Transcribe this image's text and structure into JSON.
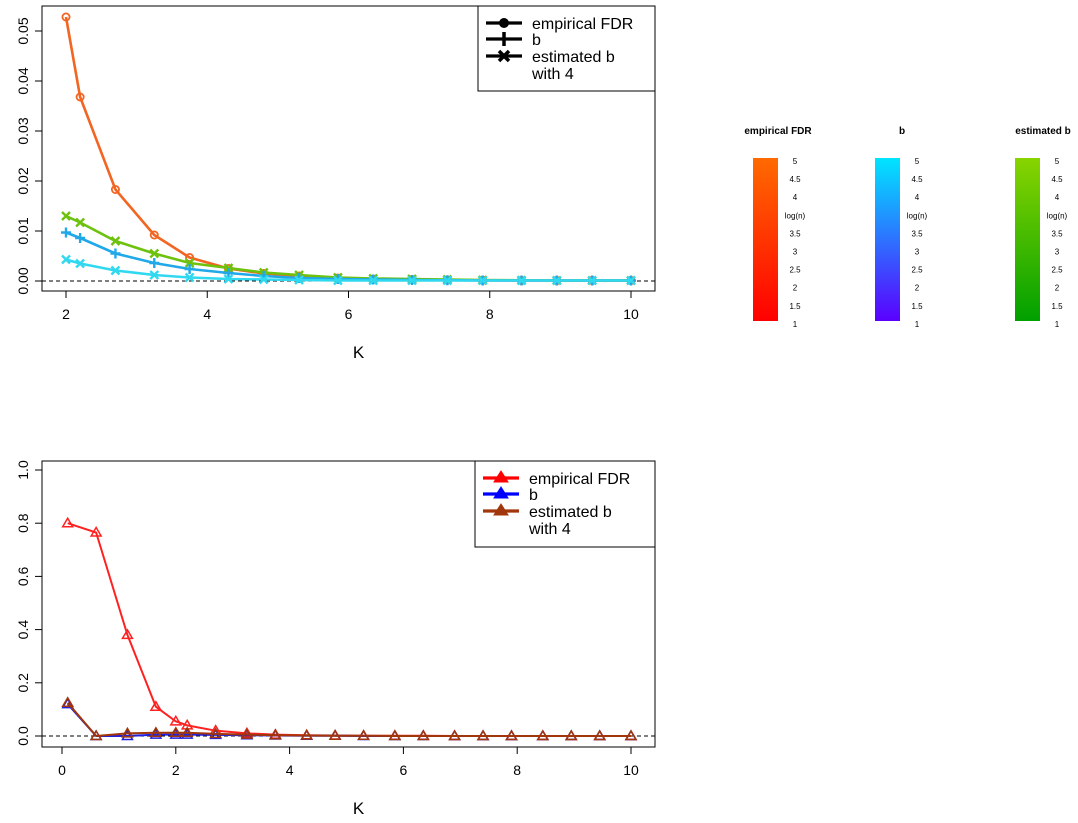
{
  "chart_data": [
    {
      "type": "line",
      "xlabel": "K",
      "ylabel": "",
      "xlim": [
        1.75,
        10.25
      ],
      "ylim": [
        -0.002,
        0.055
      ],
      "xticks": [
        2,
        4,
        6,
        8,
        10
      ],
      "xtick_labels": [
        "2",
        "4",
        "6",
        "8",
        "10"
      ],
      "yticks": [
        0.0,
        0.01,
        0.02,
        0.03,
        0.04,
        0.05
      ],
      "ytick_labels": [
        "0.00",
        "0.01",
        "0.02",
        "0.03",
        "0.04",
        "0.05"
      ],
      "reference_line_y": 0,
      "legend": {
        "position": "top-right",
        "entries": [
          {
            "label": "empirical FDR",
            "marker": "circle"
          },
          {
            "label": "b",
            "marker": "plus"
          },
          {
            "label": "estimated b",
            "marker": "x"
          },
          {
            "label": "with 4",
            "marker": ""
          }
        ]
      },
      "x": [
        2.0,
        2.2,
        2.7,
        3.25,
        3.75,
        4.3,
        4.8,
        5.3,
        5.85,
        6.35,
        6.9,
        7.4,
        7.9,
        8.45,
        8.95,
        9.45,
        10.0
      ],
      "series": [
        {
          "name": "empirical FDR",
          "marker": "circle",
          "color": "#f26522",
          "values": [
            0.0528,
            0.0368,
            0.0183,
            0.0092,
            0.0047,
            0.0025,
            0.0015,
            0.001,
            0.0006,
            0.0004,
            0.0003,
            0.0002,
            0.00015,
            0.0001,
            0.0001,
            0.0001,
            0.0001
          ]
        },
        {
          "name": "estimated b",
          "marker": "x",
          "color": "#6cc20c",
          "values": [
            0.013,
            0.0117,
            0.008,
            0.0055,
            0.0036,
            0.0026,
            0.0017,
            0.0012,
            0.0007,
            0.0005,
            0.0004,
            0.0003,
            0.0002,
            0.00015,
            0.0001,
            0.0001,
            0.0001
          ]
        },
        {
          "name": "b",
          "marker": "plus",
          "color": "#20a8e8",
          "values": [
            0.0097,
            0.0086,
            0.0055,
            0.0036,
            0.0024,
            0.0016,
            0.001,
            0.0006,
            0.0004,
            0.0003,
            0.0002,
            0.00015,
            0.0001,
            0.0001,
            0.0001,
            0.0001,
            0.0001
          ]
        },
        {
          "name": "",
          "marker": "x",
          "color": "#30d8f0",
          "values": [
            0.0043,
            0.0035,
            0.0021,
            0.0012,
            0.0007,
            0.0004,
            0.0003,
            0.0002,
            0.0001,
            0.0001,
            0.0001,
            0.0001,
            0.0001,
            0.0001,
            0.0001,
            0.0001,
            0.0001
          ]
        }
      ],
      "color_scales": [
        {
          "title": "empirical FDR",
          "scale_label": "log(n)",
          "top_color": "#ff6a00",
          "bottom_color": "#ff0000",
          "ticks": [
            "5",
            "4.5",
            "4",
            "log(n)",
            "3.5",
            "3",
            "2.5",
            "2",
            "1.5",
            "1"
          ]
        },
        {
          "title": "b",
          "scale_label": "log(n)",
          "top_color": "#00e5ff",
          "bottom_color": "#5a00ff",
          "ticks": [
            "5",
            "4.5",
            "4",
            "log(n)",
            "3.5",
            "3",
            "2.5",
            "2",
            "1.5",
            "1"
          ]
        },
        {
          "title": "estimated b",
          "scale_label": "log(n)",
          "top_color": "#88d400",
          "bottom_color": "#00a000",
          "ticks": [
            "5",
            "4.5",
            "4",
            "log(n)",
            "3.5",
            "3",
            "2.5",
            "2",
            "1.5",
            "1"
          ]
        }
      ]
    },
    {
      "type": "line",
      "xlabel": "K",
      "ylabel": "",
      "xlim": [
        -0.4,
        10.4
      ],
      "ylim": [
        -0.04,
        1.04
      ],
      "xticks": [
        0,
        2,
        4,
        6,
        8,
        10
      ],
      "xtick_labels": [
        "0",
        "2",
        "4",
        "6",
        "8",
        "10"
      ],
      "yticks": [
        0.0,
        0.2,
        0.4,
        0.6,
        0.8,
        1.0
      ],
      "ytick_labels": [
        "0.0",
        "0.2",
        "0.4",
        "0.6",
        "0.8",
        "1.0"
      ],
      "reference_line_y": 0,
      "legend": {
        "position": "top-right",
        "entries": [
          {
            "label": "empirical FDR",
            "marker": "triangle",
            "color": "#ff0000"
          },
          {
            "label": "b",
            "marker": "triangle",
            "color": "#0000ff"
          },
          {
            "label": "estimated b",
            "marker": "triangle",
            "color": "#a0360a"
          },
          {
            "label": "with 4",
            "marker": ""
          }
        ]
      },
      "x": [
        0.1,
        0.6,
        1.15,
        1.65,
        2.0,
        2.2,
        2.7,
        3.25,
        3.75,
        4.3,
        4.8,
        5.3,
        5.85,
        6.35,
        6.9,
        7.4,
        7.9,
        8.45,
        8.95,
        9.45,
        10.0
      ],
      "series": [
        {
          "name": "empirical FDR",
          "marker": "triangle",
          "color": "#ff2020",
          "values": [
            0.8,
            0.765,
            0.38,
            0.11,
            0.055,
            0.04,
            0.02,
            0.01,
            0.005,
            0.003,
            0.002,
            0.001,
            0.001,
            0.001,
            0.0,
            0.0,
            0.0,
            0.0,
            0.0,
            0.0,
            0.0
          ]
        },
        {
          "name": "b",
          "marker": "triangle",
          "color": "#2020e0",
          "values": [
            0.12,
            0.0,
            0.0,
            0.005,
            0.005,
            0.005,
            0.004,
            0.003,
            0.002,
            0.001,
            0.001,
            0.0,
            0.0,
            0.0,
            0.0,
            0.0,
            0.0,
            0.0,
            0.0,
            0.0,
            0.0
          ]
        },
        {
          "name": "estimated b",
          "marker": "triangle",
          "color": "#a0360a",
          "values": [
            0.125,
            0.0,
            0.01,
            0.012,
            0.012,
            0.012,
            0.008,
            0.005,
            0.003,
            0.002,
            0.001,
            0.001,
            0.0,
            0.0,
            0.0,
            0.0,
            0.0,
            0.0,
            0.0,
            0.0,
            0.0
          ]
        }
      ]
    }
  ]
}
